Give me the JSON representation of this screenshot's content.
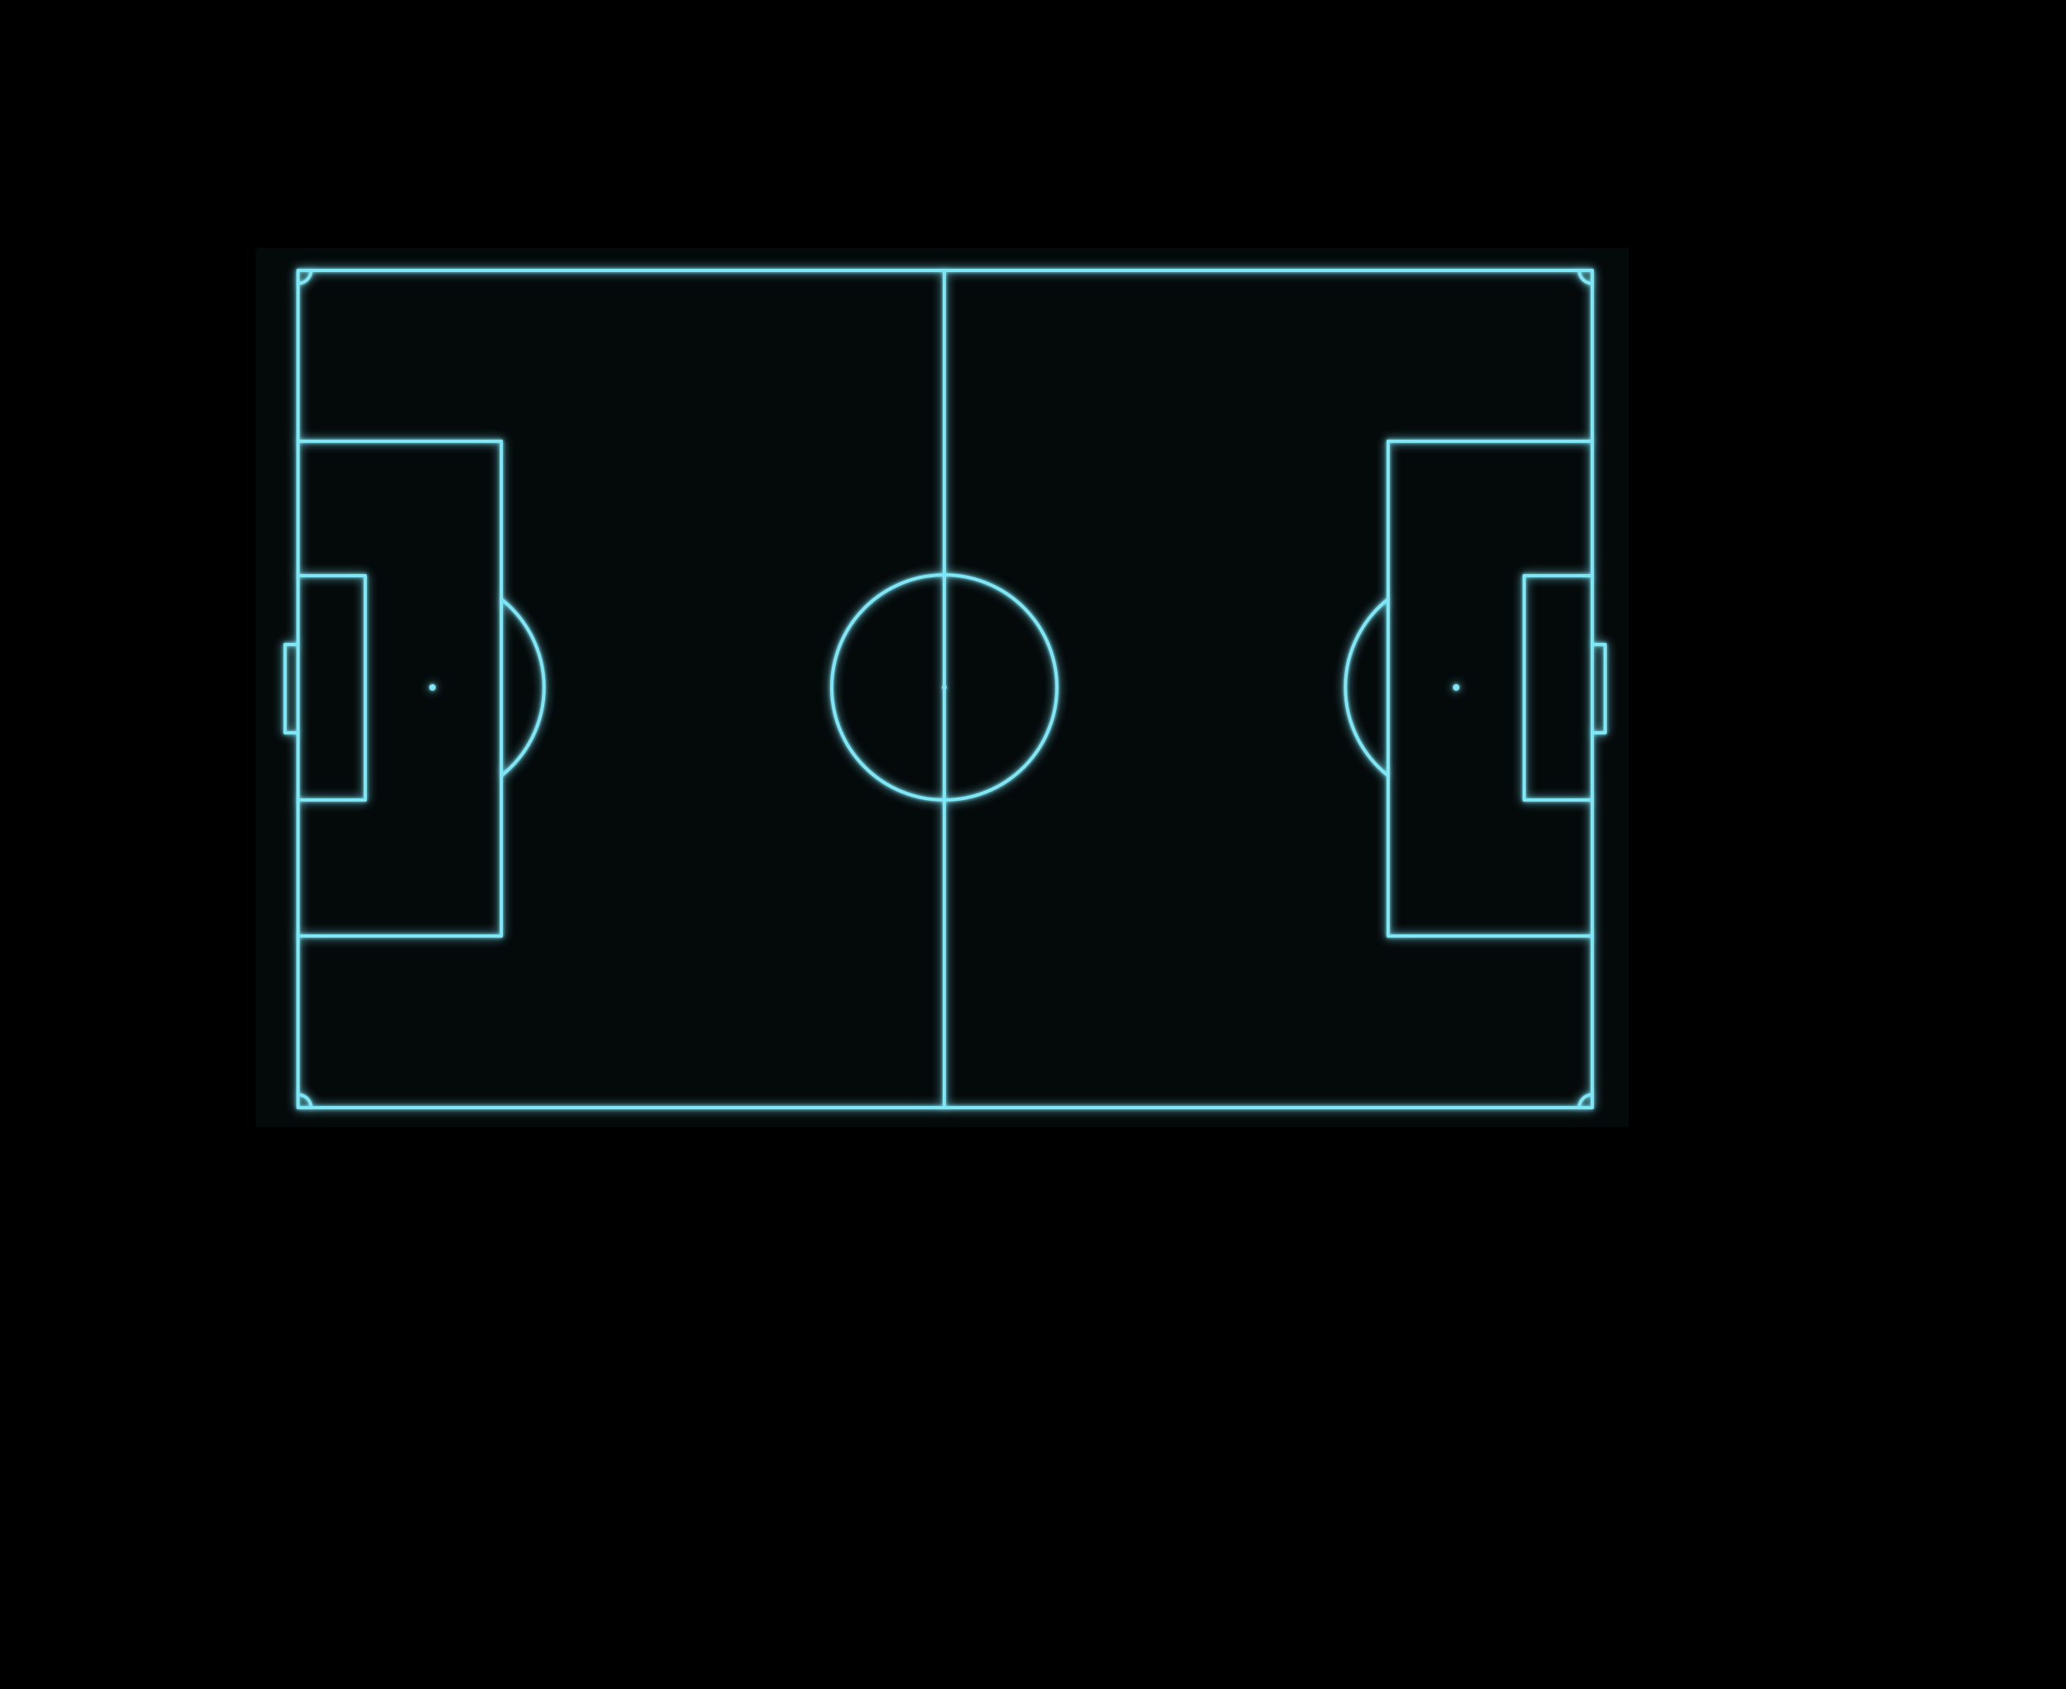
{
  "diagram": {
    "type": "football-pitch",
    "theme": "neon-glow",
    "colors": {
      "page_background": "#000000",
      "pitch_surface": "#04090a",
      "line": "#7fe6f5",
      "line_glow": "#1fb6d6"
    },
    "elements": [
      "touchlines",
      "goal-lines",
      "halfway-line",
      "centre-circle",
      "centre-spot",
      "penalty-area-left",
      "penalty-area-right",
      "goal-area-left",
      "goal-area-right",
      "penalty-spot-left",
      "penalty-spot-right",
      "penalty-arc-left",
      "penalty-arc-right",
      "goal-left",
      "goal-right",
      "corner-arcs"
    ]
  }
}
